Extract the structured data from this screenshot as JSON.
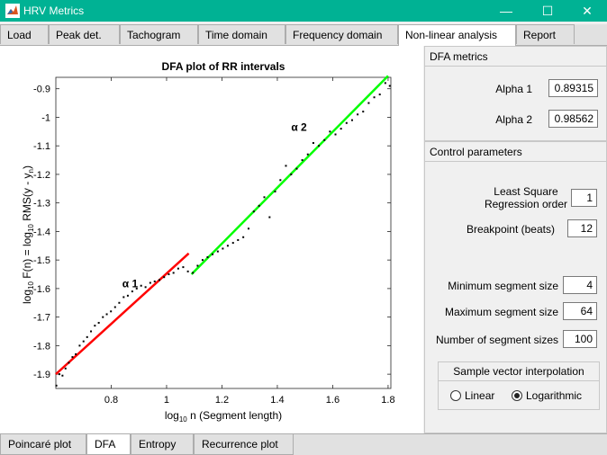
{
  "window": {
    "title": "HRV Metrics",
    "minimize": "—",
    "maximize": "☐",
    "close": "✕"
  },
  "colors": {
    "titlebar": "#00b294",
    "alpha1_line": "#ff0000",
    "alpha2_line": "#00ff00"
  },
  "top_tabs": [
    "Load",
    "Peak det.",
    "Tachogram",
    "Time domain",
    "Frequency domain",
    "Non-linear analysis",
    "Report"
  ],
  "top_tab_active": "Non-linear analysis",
  "bottom_tabs": [
    "Poincaré plot",
    "DFA",
    "Entropy",
    "Recurrence plot"
  ],
  "bottom_tab_active": "DFA",
  "dfa_metrics": {
    "title": "DFA metrics",
    "alpha1_label": "Alpha 1",
    "alpha1_value": "0.89315",
    "alpha2_label": "Alpha 2",
    "alpha2_value": "0.98562"
  },
  "control_parameters": {
    "title": "Control parameters",
    "ls_label_1": "Least Square",
    "ls_label_2": "Regression order",
    "ls_value": "1",
    "breakpoint_label": "Breakpoint (beats)",
    "breakpoint_value": "12",
    "min_seg_label": "Minimum segment size",
    "min_seg_value": "4",
    "max_seg_label": "Maximum segment size",
    "max_seg_value": "64",
    "num_seg_label": "Number of segment sizes",
    "num_seg_value": "100",
    "interp_title": "Sample vector interpolation",
    "linear_label": "Linear",
    "log_label": "Logarithmic",
    "interp_selected": "Logarithmic"
  },
  "chart_data": {
    "type": "scatter",
    "title": "DFA plot of RR intervals",
    "xlabel": "log10 n  (Segment length)",
    "ylabel": "log10 F(n) = log10 RMS(y - yn)",
    "xlim": [
      0.6,
      1.81
    ],
    "ylim": [
      -1.95,
      -0.86
    ],
    "xticks": [
      "0.8",
      "1",
      "1.2",
      "1.4",
      "1.6",
      "1.8"
    ],
    "xtick_values": [
      0.8,
      1.0,
      1.2,
      1.4,
      1.6,
      1.8
    ],
    "yticks": [
      "-0.9",
      "-1",
      "-1.1",
      "-1.2",
      "-1.3",
      "-1.4",
      "-1.5",
      "-1.6",
      "-1.7",
      "-1.8",
      "-1.9"
    ],
    "ytick_values": [
      -0.9,
      -1.0,
      -1.1,
      -1.2,
      -1.3,
      -1.4,
      -1.5,
      -1.6,
      -1.7,
      -1.8,
      -1.9
    ],
    "annotations": [
      {
        "text": "α 1",
        "x": 0.84,
        "y": -1.595
      },
      {
        "text": "α 2",
        "x": 1.45,
        "y": -1.047
      }
    ],
    "fit_lines": [
      {
        "name": "alpha1",
        "x": [
          0.6,
          1.08
        ],
        "y": [
          -1.9,
          -1.477
        ]
      },
      {
        "name": "alpha2",
        "x": [
          1.09,
          1.8
        ],
        "y": [
          -1.55,
          -0.855
        ]
      }
    ],
    "points": {
      "x": [
        0.602,
        0.613,
        0.624,
        0.635,
        0.647,
        0.66,
        0.672,
        0.686,
        0.7,
        0.713,
        0.727,
        0.741,
        0.755,
        0.77,
        0.784,
        0.799,
        0.814,
        0.829,
        0.845,
        0.86,
        0.876,
        0.892,
        0.908,
        0.924,
        0.941,
        0.957,
        0.974,
        0.991,
        1.008,
        1.025,
        1.042,
        1.06,
        1.077,
        1.095,
        1.112,
        1.13,
        1.148,
        1.166,
        1.185,
        1.203,
        1.221,
        1.24,
        1.258,
        1.277,
        1.296,
        1.315,
        1.334,
        1.353,
        1.372,
        1.392,
        1.411,
        1.431,
        1.45,
        1.47,
        1.49,
        1.51,
        1.53,
        1.55,
        1.57,
        1.59,
        1.61,
        1.63,
        1.65,
        1.67,
        1.69,
        1.71,
        1.73,
        1.75,
        1.77,
        1.79,
        1.806
      ],
      "y": [
        -1.94,
        -1.9,
        -1.905,
        -1.88,
        -1.86,
        -1.84,
        -1.83,
        -1.8,
        -1.785,
        -1.77,
        -1.75,
        -1.73,
        -1.72,
        -1.7,
        -1.69,
        -1.68,
        -1.665,
        -1.65,
        -1.63,
        -1.625,
        -1.61,
        -1.6,
        -1.59,
        -1.595,
        -1.58,
        -1.575,
        -1.57,
        -1.56,
        -1.55,
        -1.545,
        -1.53,
        -1.525,
        -1.54,
        -1.545,
        -1.52,
        -1.5,
        -1.49,
        -1.48,
        -1.47,
        -1.46,
        -1.45,
        -1.44,
        -1.43,
        -1.42,
        -1.39,
        -1.33,
        -1.31,
        -1.28,
        -1.35,
        -1.26,
        -1.22,
        -1.17,
        -1.2,
        -1.18,
        -1.15,
        -1.13,
        -1.09,
        -1.1,
        -1.08,
        -1.05,
        -1.06,
        -1.04,
        -1.02,
        -1.01,
        -0.99,
        -0.98,
        -0.95,
        -0.93,
        -0.92,
        -0.88,
        -0.89
      ]
    }
  }
}
